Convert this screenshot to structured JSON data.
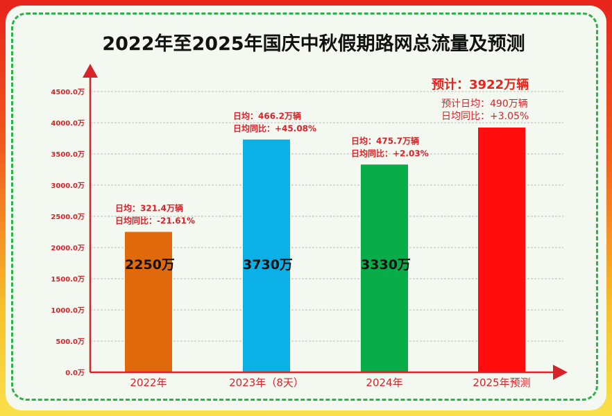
{
  "chart_data": {
    "type": "bar",
    "title": "2022年至2025年国庆中秋假期路网总流量及预测",
    "categories": [
      "2022年",
      "2023年（8天）",
      "2024年",
      "2025年预测"
    ],
    "values": [
      2250,
      3730,
      3330,
      3922
    ],
    "value_labels": [
      "2250万",
      "3730万",
      "3330万",
      ""
    ],
    "colors": [
      "#e06a0b",
      "#0bb0e6",
      "#08ad4a",
      "#ff0d0d"
    ],
    "ylim": [
      0,
      4500
    ],
    "yticks": [
      "0.0万",
      "500.0万",
      "1000.0万",
      "1500.0万",
      "2000.0万",
      "2500.0万",
      "3000.0万",
      "3500.0万",
      "4000.0万",
      "4500.0万"
    ],
    "grid": true,
    "annotations": [
      {
        "lines": [
          "日均：321.4万辆",
          "日均同比：-21.61%"
        ]
      },
      {
        "lines": [
          "日均：466.2万辆",
          "日均同比：+45.08%"
        ]
      },
      {
        "lines": [
          "日均：475.7万辆",
          "日均同比：+2.03%"
        ]
      },
      {
        "total": "预计：3922万辆",
        "lines": [
          "预计日均：490万辆",
          "日均同比：+3.05%"
        ]
      }
    ]
  }
}
